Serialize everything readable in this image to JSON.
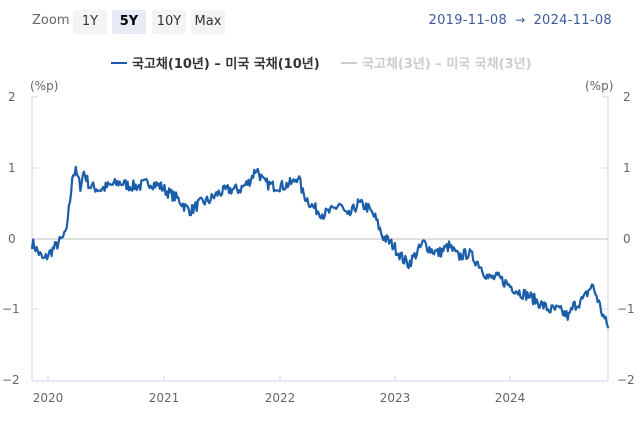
{
  "toolbar": {
    "zoom_label": "Zoom",
    "zoom_buttons": [
      {
        "label": "1Y",
        "active": false
      },
      {
        "label": "5Y",
        "active": true
      },
      {
        "label": "10Y",
        "active": false
      },
      {
        "label": "Max",
        "active": false
      }
    ],
    "date_from": "2019-11-08",
    "date_arrow": "→",
    "date_to": "2024-11-08"
  },
  "legend": {
    "items": [
      {
        "label": "국고채(10년) – 미국 국채(10년)",
        "color": "#1a5da8",
        "visible": true
      },
      {
        "label": "국고채(3년) – 미국 국채(3년)",
        "color": "#cccccc",
        "visible": false
      }
    ]
  },
  "axis": {
    "left_unit": "(%p)",
    "right_unit": "(%p)"
  },
  "colors": {
    "series_primary": "#1a5da8",
    "axis_line": "#ccd6eb",
    "zero_line": "#cccccc",
    "date_text": "#3d5a9e"
  },
  "chart_data": {
    "type": "line",
    "title": "",
    "xlabel": "",
    "ylabel": "(%p)",
    "ylim": [
      -2,
      2
    ],
    "yticks": [
      2,
      1,
      0,
      -1,
      -2
    ],
    "yticks_labels": [
      "2",
      "1",
      "0",
      "−1",
      "−2"
    ],
    "xticks": [
      "2020",
      "2021",
      "2022",
      "2023",
      "2024"
    ],
    "xrange": [
      "2019-11-08",
      "2024-11-08"
    ],
    "grid": false,
    "legend_position": "top",
    "series": [
      {
        "name": "국고채(10년) – 미국 국채(10년)",
        "visible": true,
        "x": [
          2019.86,
          2019.96,
          2020.04,
          2020.12,
          2020.15,
          2020.19,
          2020.21,
          2020.24,
          2020.28,
          2020.31,
          2020.36,
          2020.45,
          2020.53,
          2020.62,
          2020.71,
          2020.79,
          2020.88,
          2020.97,
          2021.05,
          2021.14,
          2021.19,
          2021.24,
          2021.31,
          2021.4,
          2021.48,
          2021.57,
          2021.66,
          2021.74,
          2021.81,
          2021.87,
          2021.95,
          2022.04,
          2022.13,
          2022.17,
          2022.21,
          2022.3,
          2022.39,
          2022.47,
          2022.53,
          2022.6,
          2022.69,
          2022.77,
          2022.84,
          2022.9,
          2023.0,
          2023.09,
          2023.13,
          2023.22,
          2023.26,
          2023.32,
          2023.39,
          2023.48,
          2023.56,
          2023.65,
          2023.74,
          2023.82,
          2023.91,
          2024.0,
          2024.09,
          2024.17,
          2024.26,
          2024.35,
          2024.43,
          2024.52,
          2024.56,
          2024.65,
          2024.72,
          2024.76,
          2024.81,
          2024.86
        ],
        "values": [
          -0.05,
          -0.3,
          -0.15,
          0.0,
          0.05,
          0.55,
          0.9,
          0.95,
          0.75,
          0.95,
          0.75,
          0.7,
          0.75,
          0.8,
          0.75,
          0.75,
          0.8,
          0.75,
          0.65,
          0.55,
          0.45,
          0.4,
          0.5,
          0.55,
          0.65,
          0.7,
          0.7,
          0.8,
          1.0,
          0.8,
          0.75,
          0.75,
          0.8,
          0.9,
          0.65,
          0.45,
          0.35,
          0.4,
          0.5,
          0.3,
          0.5,
          0.45,
          0.3,
          0.05,
          -0.1,
          -0.3,
          -0.35,
          -0.15,
          -0.05,
          -0.15,
          -0.2,
          -0.1,
          -0.25,
          -0.2,
          -0.35,
          -0.55,
          -0.55,
          -0.65,
          -0.75,
          -0.8,
          -0.9,
          -1.0,
          -1.0,
          -1.1,
          -0.95,
          -0.85,
          -0.65,
          -0.8,
          -1.05,
          -1.25
        ]
      },
      {
        "name": "국고채(3년) – 미국 국채(3년)",
        "visible": false,
        "x": [],
        "values": []
      }
    ]
  }
}
